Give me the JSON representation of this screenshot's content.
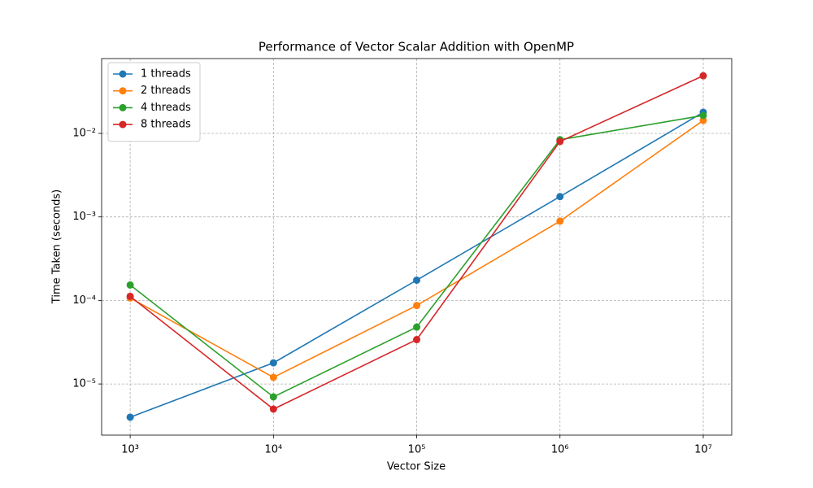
{
  "chart_data": {
    "type": "line",
    "title": "Performance of Vector Scalar Addition with OpenMP",
    "x_label": "Vector Size",
    "y_label": "Time Taken (seconds)",
    "x": [
      1000,
      10000,
      100000,
      1000000,
      10000000
    ],
    "series": [
      {
        "name": "1 threads",
        "color": "#1f77b4",
        "values": [
          4e-06,
          1.79e-05,
          0.000175,
          0.00175,
          0.0179
        ]
      },
      {
        "name": "2 threads",
        "color": "#ff7f0e",
        "values": [
          0.000107,
          1.2e-05,
          8.7e-05,
          0.00089,
          0.0143
        ]
      },
      {
        "name": "4 threads",
        "color": "#2ca02c",
        "values": [
          0.000153,
          7e-06,
          4.8e-05,
          0.0084,
          0.0164
        ]
      },
      {
        "name": "8 threads",
        "color": "#d62728",
        "values": [
          0.000112,
          5e-06,
          3.4e-05,
          0.008,
          0.049
        ]
      }
    ],
    "xscale": "log",
    "yscale": "log",
    "xlim": [
      632,
      15800000
    ],
    "ylim": [
      2.44e-06,
      0.0787
    ],
    "xticks": [
      {
        "value": 1000,
        "label": "10³"
      },
      {
        "value": 10000,
        "label": "10⁴"
      },
      {
        "value": 100000,
        "label": "10⁵"
      },
      {
        "value": 1000000,
        "label": "10⁶"
      },
      {
        "value": 10000000,
        "label": "10⁷"
      }
    ],
    "yticks": [
      {
        "value": 1e-05,
        "label": "10⁻⁵"
      },
      {
        "value": 0.0001,
        "label": "10⁻⁴"
      },
      {
        "value": 0.001,
        "label": "10⁻³"
      },
      {
        "value": 0.01,
        "label": "10⁻²"
      }
    ],
    "grid": true,
    "legend": "upper-left"
  }
}
